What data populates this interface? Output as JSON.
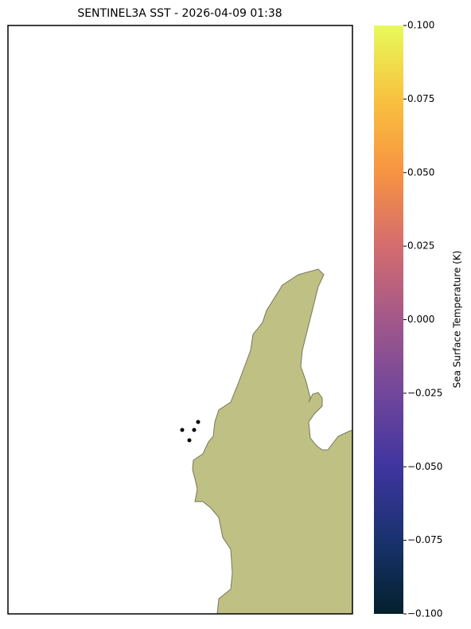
{
  "title": "SENTINEL3A SST - 2026-04-09 01:38",
  "colorbar": {
    "label": "Sea Surface Temperature (K)",
    "lim": [
      -0.1,
      0.1
    ],
    "ticks": [
      {
        "value": -0.1,
        "label": "−0.100"
      },
      {
        "value": -0.075,
        "label": "−0.075"
      },
      {
        "value": -0.05,
        "label": "−0.050"
      },
      {
        "value": -0.025,
        "label": "−0.025"
      },
      {
        "value": 0,
        "label": "0.000"
      },
      {
        "value": 0.025,
        "label": "0.025"
      },
      {
        "value": 0.05,
        "label": "0.050"
      },
      {
        "value": 0.075,
        "label": "0.075"
      },
      {
        "value": 0.1,
        "label": "0.100"
      }
    ]
  }
}
